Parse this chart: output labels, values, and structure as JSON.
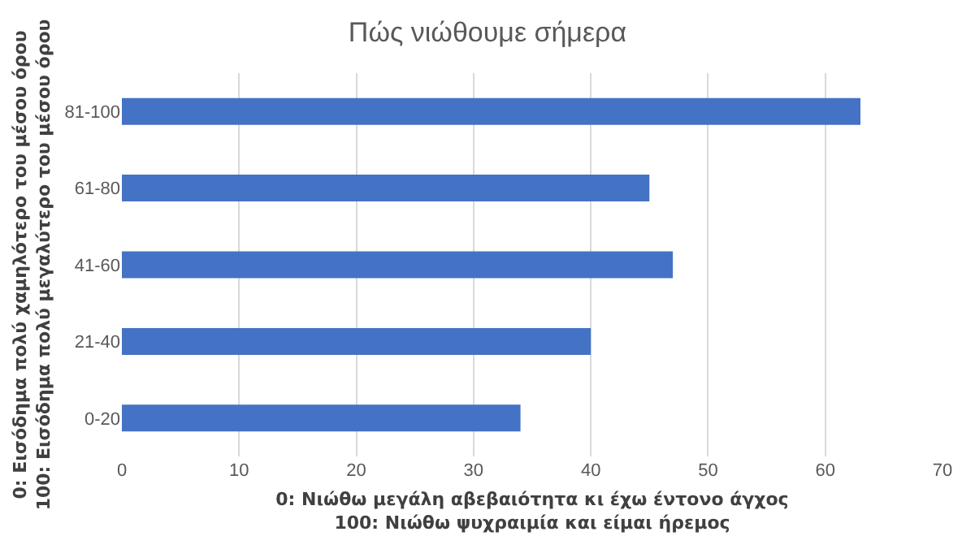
{
  "chart_data": {
    "type": "bar",
    "orientation": "horizontal",
    "title": "Πώς νιώθουμε σήμερα",
    "xlabel": "0: Νιώθω μεγάλη αβεβαιότητα κι έχω έντονο άγχος\n100: Νιώθω ψυχραιμία και είμαι ήρεμος",
    "ylabel": "0: Εισόδημα πολύ χαμηλότερο του μέσου όρου\n100: Εισόδημα πολύ μεγαλύτερο του μέσου όρου",
    "categories": [
      "81-100",
      "61-80",
      "41-60",
      "21-40",
      "0-20"
    ],
    "values": [
      63,
      45,
      47,
      40,
      34
    ],
    "color": "#4472c4",
    "xlim": [
      0,
      70
    ],
    "xticks": [
      0,
      10,
      20,
      30,
      40,
      50,
      60,
      70
    ],
    "grid": "x"
  }
}
